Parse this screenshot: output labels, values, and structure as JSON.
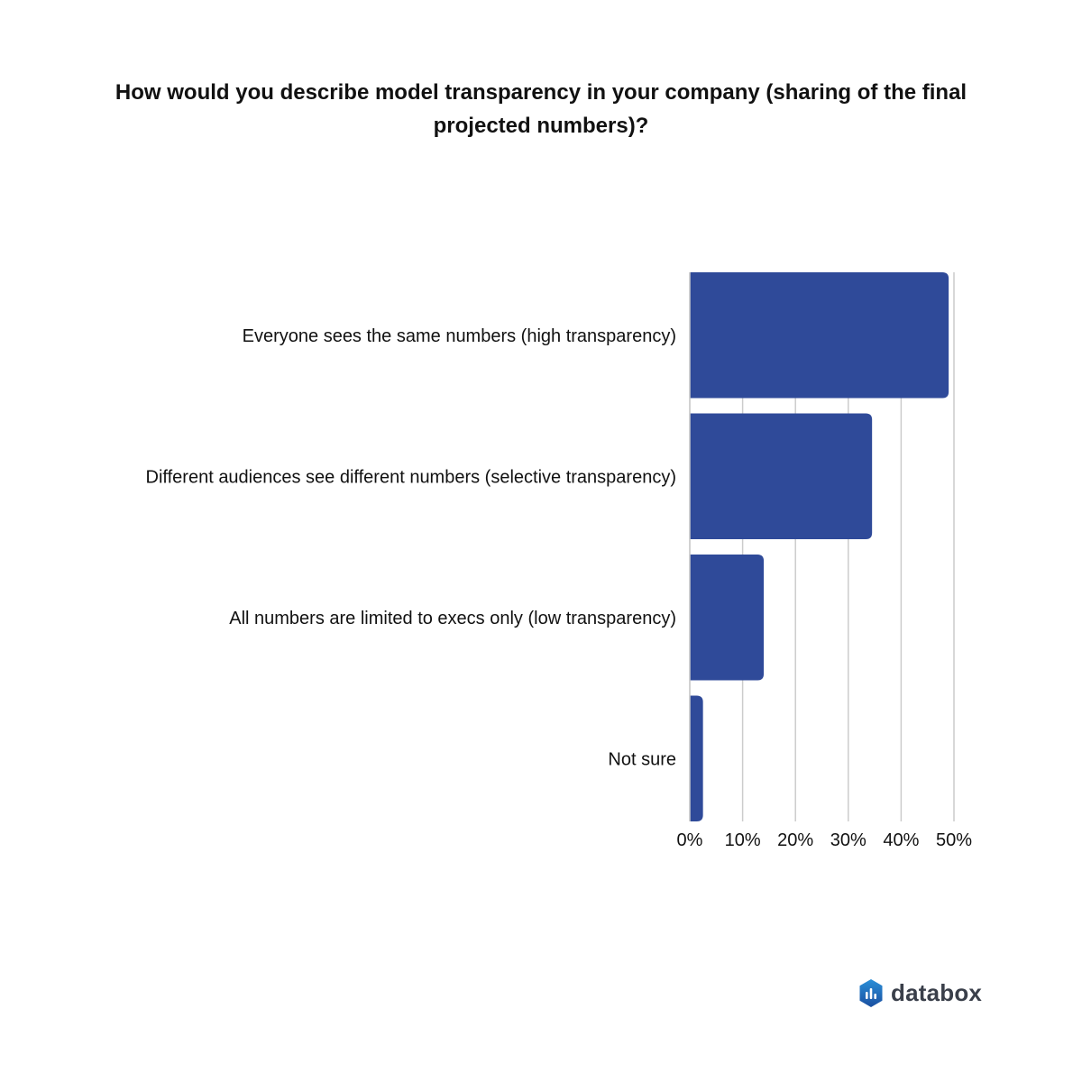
{
  "chart_data": {
    "type": "bar",
    "orientation": "horizontal",
    "title": "How would you describe model transparency in your company (sharing of the final projected numbers)?",
    "categories": [
      "Everyone sees the same numbers (high transparency)",
      "Different audiences see different numbers (selective transparency)",
      "All numbers are limited to execs only (low transparency)",
      "Not sure"
    ],
    "values": [
      49,
      34.5,
      14,
      2.5
    ],
    "unit": "%",
    "xlim": [
      0,
      50
    ],
    "xticks": [
      0,
      10,
      20,
      30,
      40,
      50
    ],
    "xtick_labels": [
      "0%",
      "10%",
      "20%",
      "30%",
      "40%",
      "50%"
    ],
    "grid": "vertical",
    "bar_color": "#2f4a99",
    "grid_color": "#cccccc"
  },
  "brand": {
    "name": "databox",
    "icon": "databox-logo-icon",
    "icon_color_top": "#2a8fd8",
    "icon_color_bottom": "#1a4fa0"
  }
}
